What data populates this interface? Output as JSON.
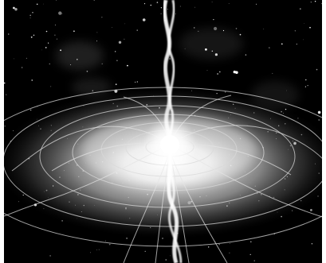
{
  "image": {
    "subject": "illustration",
    "palette": {
      "background": "#000000",
      "frame": "#ffffff",
      "glow": "#ffffff",
      "lines": "#d9d9d9"
    }
  }
}
